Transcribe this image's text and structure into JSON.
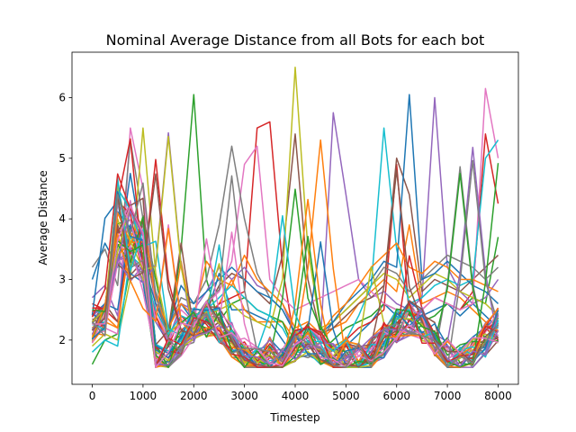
{
  "chart_data": {
    "type": "line",
    "title": "Nominal Average Distance from all Bots for each bot",
    "xlabel": "Timestep",
    "ylabel": "Average Distance",
    "xlim": [
      -400,
      8400
    ],
    "ylim": [
      1.27,
      6.75
    ],
    "xticks": [
      0,
      1000,
      2000,
      3000,
      4000,
      5000,
      6000,
      7000,
      8000
    ],
    "yticks": [
      2,
      3,
      4,
      5,
      6
    ],
    "grid": false,
    "legend": "none",
    "series_count": 48,
    "palette": [
      "#1f77b4",
      "#ff7f0e",
      "#2ca02c",
      "#d62728",
      "#9467bd",
      "#8c564b",
      "#e377c2",
      "#7f7f7f",
      "#bcbd22",
      "#17becf"
    ],
    "series": [
      {
        "x": [
          0,
          250,
          500,
          750,
          1000,
          1250,
          1500,
          1750,
          2000,
          2250,
          2500,
          2750,
          3000,
          3250,
          3500,
          3750,
          4000,
          4250,
          4500,
          4750,
          5000,
          5250,
          5500,
          5750,
          6000,
          6250,
          6500,
          6750,
          7000,
          7250,
          7500,
          7750,
          8000
        ],
        "values": [
          3.0,
          3.6,
          3.2,
          4.75,
          3.5,
          2.3,
          1.95,
          2.6,
          2.3,
          2.4,
          3.1,
          2.5,
          2.5,
          2.4,
          2.3,
          2.0,
          1.7,
          1.75,
          1.65,
          1.7,
          1.9,
          2.1,
          2.3,
          2.6,
          2.4,
          2.1,
          2.4,
          2.5,
          2.6,
          2.4,
          2.6,
          2.4,
          2.2
        ]
      },
      {
        "x": [
          0,
          250,
          500,
          750,
          1000,
          1250,
          1500,
          1750,
          2000,
          2250,
          2500,
          2750,
          3000,
          3250,
          3500,
          3750,
          4000,
          4250,
          4500,
          4750,
          5000,
          5250,
          5500,
          5750,
          6000,
          6250,
          6500,
          6750,
          7000,
          7250,
          7500,
          7750,
          8000
        ],
        "values": [
          2.2,
          2.4,
          2.2,
          3.8,
          3.2,
          2.4,
          2.0,
          3.3,
          2.2,
          2.4,
          2.6,
          3.0,
          2.5,
          2.3,
          2.3,
          2.3,
          2.0,
          2.1,
          2.0,
          2.2,
          2.3,
          2.6,
          2.8,
          3.0,
          2.8,
          3.9,
          2.6,
          2.7,
          2.8,
          2.7,
          2.5,
          2.3,
          2.0
        ]
      },
      {
        "x": [
          0,
          250,
          500,
          750,
          1000,
          1250,
          1500,
          1750,
          2000,
          2250,
          2500,
          2750,
          3000,
          3250,
          3500,
          3750,
          4000,
          4250,
          4500,
          4750,
          5000,
          5250,
          5500,
          5750,
          6000,
          6250,
          6500,
          6750,
          7000,
          7250,
          7500,
          7750,
          8000
        ],
        "values": [
          1.6,
          2.0,
          2.1,
          3.2,
          4.05,
          3.0,
          2.0,
          3.5,
          6.05,
          3.0,
          2.3,
          2.6,
          2.7,
          2.5,
          2.4,
          2.3,
          1.8,
          1.9,
          1.8,
          2.0,
          2.2,
          2.3,
          2.4,
          2.6,
          2.5,
          2.2,
          2.3,
          2.4,
          2.6,
          2.5,
          2.7,
          2.6,
          3.7
        ]
      },
      {
        "x": [
          0,
          250,
          500,
          750,
          1000,
          1250,
          1500,
          1750,
          2000,
          2250,
          2500,
          2750,
          3000,
          3250,
          3500,
          3750,
          4000,
          4250,
          4500,
          4750,
          5000,
          5250,
          5500,
          5750,
          6000,
          6250,
          6500,
          6750,
          7000,
          7250,
          7500,
          7750,
          8000
        ],
        "values": [
          2.6,
          2.5,
          2.3,
          3.9,
          3.4,
          2.4,
          1.9,
          2.4,
          2.2,
          2.3,
          2.6,
          2.7,
          2.8,
          5.5,
          5.6,
          3.2,
          1.9,
          1.9,
          1.8,
          1.9,
          2.0,
          2.2,
          2.3,
          2.5,
          4.9,
          2.4,
          2.5,
          2.7,
          2.6,
          2.5,
          2.8,
          5.4,
          4.25
        ]
      },
      {
        "x": [
          0,
          250,
          500,
          750,
          1000,
          1250,
          1500,
          1750,
          2000,
          2250,
          2500,
          2750,
          3000,
          3250,
          3500,
          3750,
          4000,
          4250,
          4500,
          4750,
          5000,
          5250,
          5500,
          5750,
          6000,
          6250,
          6500,
          6750,
          7000,
          7250,
          7500,
          7750,
          8000
        ],
        "values": [
          2.7,
          2.9,
          2.4,
          4.3,
          3.1,
          2.3,
          2.0,
          2.6,
          2.5,
          2.8,
          3.2,
          3.0,
          3.2,
          2.9,
          2.8,
          2.6,
          2.1,
          2.2,
          2.0,
          5.75,
          4.4,
          3.0,
          2.7,
          2.8,
          2.6,
          2.5,
          2.7,
          6.0,
          3.2,
          2.8,
          2.6,
          2.7,
          3.0
        ]
      },
      {
        "x": [
          0,
          250,
          500,
          750,
          1000,
          1250,
          1500,
          1750,
          2000,
          2250,
          2500,
          2750,
          3000,
          3250,
          3500,
          3750,
          4000,
          4250,
          4500,
          4750,
          5000,
          5250,
          5500,
          5750,
          6000,
          6250,
          6500,
          6750,
          7000,
          7250,
          7500,
          7750,
          8000
        ],
        "values": [
          2.3,
          2.6,
          2.3,
          3.6,
          3.8,
          2.6,
          2.1,
          2.4,
          2.3,
          2.5,
          2.9,
          3.1,
          3.0,
          2.8,
          2.6,
          3.4,
          5.4,
          3.0,
          2.1,
          2.2,
          2.4,
          2.6,
          2.7,
          2.9,
          5.0,
          4.4,
          2.8,
          3.0,
          2.9,
          2.8,
          3.0,
          3.2,
          3.4
        ]
      },
      {
        "x": [
          0,
          250,
          500,
          750,
          1000,
          1250,
          1500,
          1750,
          2000,
          2250,
          2500,
          2750,
          3000,
          3250,
          3500,
          3750,
          4000,
          4250,
          4500,
          4750,
          5000,
          5250,
          5500,
          5750,
          6000,
          6250,
          6500,
          6750,
          7000,
          7250,
          7500,
          7750,
          8000
        ],
        "values": [
          2.0,
          2.2,
          2.1,
          5.5,
          4.5,
          2.5,
          2.0,
          2.5,
          2.3,
          2.6,
          2.8,
          3.3,
          4.9,
          5.2,
          3.0,
          2.7,
          2.5,
          2.6,
          2.7,
          2.8,
          2.9,
          3.0,
          2.8,
          2.6,
          2.5,
          2.3,
          2.5,
          2.7,
          2.6,
          2.5,
          2.6,
          6.15,
          5.0
        ]
      },
      {
        "x": [
          0,
          250,
          500,
          750,
          1000,
          1250,
          1500,
          1750,
          2000,
          2250,
          2500,
          2750,
          3000,
          3250,
          3500,
          3750,
          4000,
          4250,
          4500,
          4750,
          5000,
          5250,
          5500,
          5750,
          6000,
          6250,
          6500,
          6750,
          7000,
          7250,
          7500,
          7750,
          8000
        ],
        "values": [
          3.2,
          3.5,
          2.9,
          5.3,
          4.0,
          2.8,
          2.2,
          2.7,
          2.6,
          3.0,
          3.9,
          5.2,
          4.0,
          3.1,
          2.7,
          2.5,
          2.1,
          2.2,
          2.0,
          2.3,
          2.5,
          2.7,
          2.9,
          3.2,
          3.1,
          2.8,
          3.0,
          3.2,
          3.4,
          3.3,
          3.2,
          3.0,
          3.2
        ]
      },
      {
        "x": [
          0,
          250,
          500,
          750,
          1000,
          1250,
          1500,
          1750,
          2000,
          2250,
          2500,
          2750,
          3000,
          3250,
          3500,
          3750,
          4000,
          4250,
          4500,
          4750,
          5000,
          5250,
          5500,
          5750,
          6000,
          6250,
          6500,
          6750,
          7000,
          7250,
          7500,
          7750,
          8000
        ],
        "values": [
          1.9,
          2.1,
          2.0,
          3.0,
          5.5,
          3.1,
          2.1,
          2.3,
          2.2,
          2.4,
          2.5,
          2.6,
          2.4,
          2.3,
          2.2,
          3.0,
          6.5,
          3.5,
          2.2,
          2.3,
          2.5,
          2.7,
          2.9,
          3.1,
          3.0,
          2.7,
          2.9,
          3.1,
          3.0,
          2.8,
          2.7,
          2.6,
          2.4
        ]
      },
      {
        "x": [
          0,
          250,
          500,
          750,
          1000,
          1250,
          1500,
          1750,
          2000,
          2250,
          2500,
          2750,
          3000,
          3250,
          3500,
          3750,
          4000,
          4250,
          4500,
          4750,
          5000,
          5250,
          5500,
          5750,
          6000,
          6250,
          6500,
          6750,
          7000,
          7250,
          7500,
          7750,
          8000
        ],
        "values": [
          1.8,
          2.0,
          1.9,
          3.4,
          3.2,
          2.5,
          2.1,
          2.4,
          2.3,
          2.5,
          2.7,
          2.9,
          2.7,
          2.5,
          2.4,
          2.2,
          1.8,
          1.8,
          1.6,
          1.7,
          2.0,
          2.4,
          2.9,
          5.5,
          3.5,
          2.6,
          2.7,
          2.9,
          3.0,
          2.9,
          3.0,
          5.0,
          5.3
        ]
      },
      {
        "x": [
          0,
          250,
          500,
          750,
          1000,
          1250,
          1500,
          1750,
          2000,
          2250,
          2500,
          2750,
          3000,
          3250,
          3500,
          3750,
          4000,
          4250,
          4500,
          4750,
          5000,
          5250,
          5500,
          5750,
          6000,
          6250,
          6500,
          6750,
          7000,
          7250,
          7500,
          7750,
          8000
        ],
        "values": [
          2.4,
          2.6,
          2.5,
          3.9,
          3.3,
          2.6,
          2.2,
          2.9,
          2.6,
          2.8,
          3.0,
          3.2,
          3.0,
          2.8,
          2.7,
          2.5,
          2.1,
          2.2,
          2.1,
          2.3,
          2.6,
          2.8,
          3.0,
          3.3,
          3.2,
          6.05,
          3.0,
          3.1,
          3.3,
          3.1,
          2.9,
          2.8,
          2.6
        ]
      },
      {
        "x": [
          0,
          250,
          500,
          750,
          1000,
          1250,
          1500,
          1750,
          2000,
          2250,
          2500,
          2750,
          3000,
          3250,
          3500,
          3750,
          4000,
          4250,
          4500,
          4750,
          5000,
          5250,
          5500,
          5750,
          6000,
          6250,
          6500,
          6750,
          7000,
          7250,
          7500,
          7750,
          8000
        ],
        "values": [
          2.1,
          2.3,
          2.2,
          3.7,
          4.0,
          2.7,
          2.2,
          2.6,
          2.4,
          3.3,
          3.0,
          2.9,
          3.4,
          3.0,
          2.8,
          2.6,
          2.2,
          2.3,
          2.1,
          2.4,
          2.6,
          2.9,
          3.2,
          3.4,
          3.6,
          3.2,
          3.1,
          3.3,
          3.2,
          3.0,
          3.0,
          2.9,
          2.8
        ]
      }
    ]
  }
}
